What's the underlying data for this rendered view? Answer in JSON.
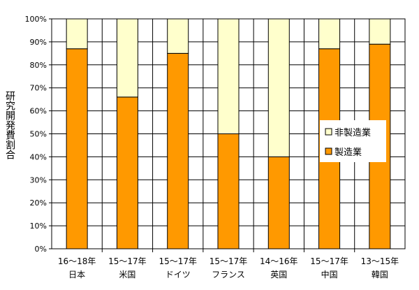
{
  "chart_data": {
    "type": "bar",
    "stacked": true,
    "ylabel": "研究開発費割合",
    "ylim": [
      0,
      100
    ],
    "yticks": [
      "0%",
      "10%",
      "20%",
      "30%",
      "40%",
      "50%",
      "60%",
      "70%",
      "80%",
      "90%",
      "100%"
    ],
    "grid": true,
    "legend_position": "right",
    "categories": [
      {
        "period": "16～18年",
        "country": "日本"
      },
      {
        "period": "15～17年",
        "country": "米国"
      },
      {
        "period": "15～17年",
        "country": "ドイツ"
      },
      {
        "period": "15～17年",
        "country": "フランス"
      },
      {
        "period": "14～16年",
        "country": "英国"
      },
      {
        "period": "15～17年",
        "country": "中国"
      },
      {
        "period": "13～15年",
        "country": "韓国"
      }
    ],
    "series": [
      {
        "name": "製造業",
        "color": "#FF9900",
        "values": [
          87,
          66,
          85,
          50,
          40,
          87,
          89
        ]
      },
      {
        "name": "非製造業",
        "color": "#FFFFCC",
        "values": [
          13,
          34,
          15,
          50,
          60,
          13,
          11
        ]
      }
    ],
    "legend": [
      "非製造業",
      "製造業"
    ]
  }
}
